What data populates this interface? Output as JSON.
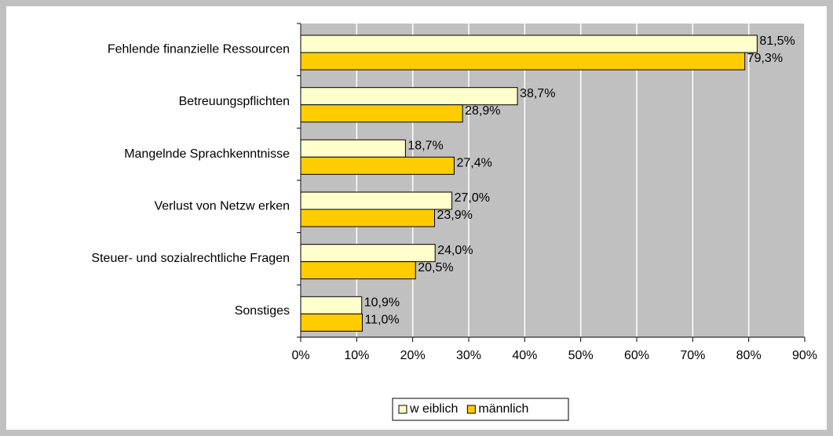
{
  "chart_data": {
    "type": "hbar",
    "categories": [
      "Fehlende finanzielle Ressourcen",
      "Betreuungspflichten",
      "Mangelnde Sprachkenntnisse",
      "Verlust von Netzw erken",
      "Steuer- und sozialrechtliche Fragen",
      "Sonstiges"
    ],
    "series": [
      {
        "name": "w eiblich",
        "color": "#ffffcc",
        "values": [
          81.5,
          38.7,
          18.7,
          27.0,
          24.0,
          10.9
        ],
        "value_labels": [
          "81,5%",
          "38,7%",
          "18,7%",
          "27,0%",
          "24,0%",
          "10,9%"
        ]
      },
      {
        "name": "männlich",
        "color": "#ffcc00",
        "values": [
          79.3,
          28.9,
          27.4,
          23.9,
          20.5,
          11.0
        ],
        "value_labels": [
          "79,3%",
          "28,9%",
          "27,4%",
          "23,9%",
          "20,5%",
          "11,0%"
        ]
      }
    ],
    "xlim": [
      0,
      90
    ],
    "xticks": [
      {
        "value": 0,
        "label": "0%"
      },
      {
        "value": 10,
        "label": "10%"
      },
      {
        "value": 20,
        "label": "20%"
      },
      {
        "value": 30,
        "label": "30%"
      },
      {
        "value": 40,
        "label": "40%"
      },
      {
        "value": 50,
        "label": "50%"
      },
      {
        "value": 60,
        "label": "60%"
      },
      {
        "value": 70,
        "label": "70%"
      },
      {
        "value": 80,
        "label": "80%"
      },
      {
        "value": 90,
        "label": "90%"
      }
    ],
    "grid": true,
    "plot_background": "#c0c0c0",
    "legend": "bottom"
  }
}
